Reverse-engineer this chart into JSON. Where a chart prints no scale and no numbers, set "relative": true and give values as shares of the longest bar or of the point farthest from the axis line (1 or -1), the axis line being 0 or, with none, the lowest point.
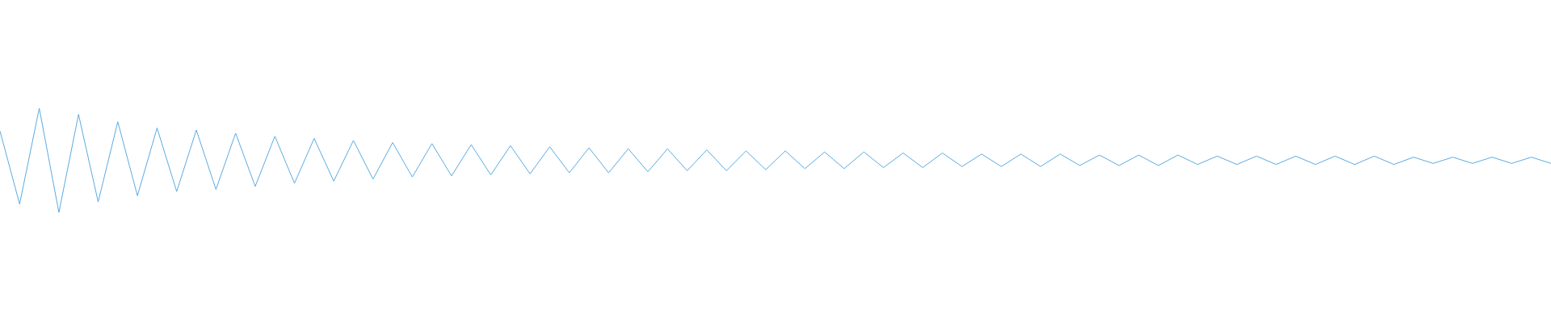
{
  "chart_data": {
    "type": "line",
    "relative": true,
    "marker": "none",
    "color": "#5aaae0",
    "categories": [
      null,
      null,
      null,
      null,
      null,
      null,
      null,
      null,
      null,
      null,
      null,
      null,
      null,
      null,
      null,
      null,
      null,
      null,
      null,
      null,
      null,
      null,
      null,
      null,
      null,
      null,
      null,
      null,
      null,
      null,
      null,
      null,
      null,
      null,
      null,
      null,
      null,
      null,
      null,
      null,
      null,
      null,
      null,
      null,
      null,
      null,
      null,
      null,
      null,
      null,
      null,
      null,
      null,
      null,
      null,
      null,
      null,
      null,
      null,
      null,
      null,
      null,
      null,
      null,
      null,
      null,
      null,
      null,
      null,
      null,
      null,
      null,
      null,
      null,
      null,
      null,
      null,
      null,
      null,
      null
    ],
    "values": [
      0.78,
      0.08,
      1.0,
      0.0,
      0.94,
      0.1,
      0.87,
      0.16,
      0.81,
      0.2,
      0.79,
      0.22,
      0.76,
      0.25,
      0.73,
      0.28,
      0.71,
      0.3,
      0.69,
      0.32,
      0.67,
      0.34,
      0.66,
      0.35,
      0.65,
      0.36,
      0.64,
      0.37,
      0.63,
      0.38,
      0.62,
      0.38,
      0.61,
      0.39,
      0.61,
      0.4,
      0.6,
      0.4,
      0.59,
      0.41,
      0.59,
      0.42,
      0.58,
      0.42,
      0.58,
      0.43,
      0.57,
      0.43,
      0.57,
      0.44,
      0.56,
      0.44,
      0.56,
      0.44,
      0.56,
      0.45,
      0.55,
      0.45,
      0.55,
      0.45,
      0.55,
      0.46,
      0.54,
      0.46,
      0.54,
      0.46,
      0.54,
      0.46,
      0.54,
      0.46,
      0.54,
      0.46,
      0.53,
      0.47,
      0.53,
      0.47,
      0.53,
      0.47,
      0.53,
      0.47
    ]
  }
}
